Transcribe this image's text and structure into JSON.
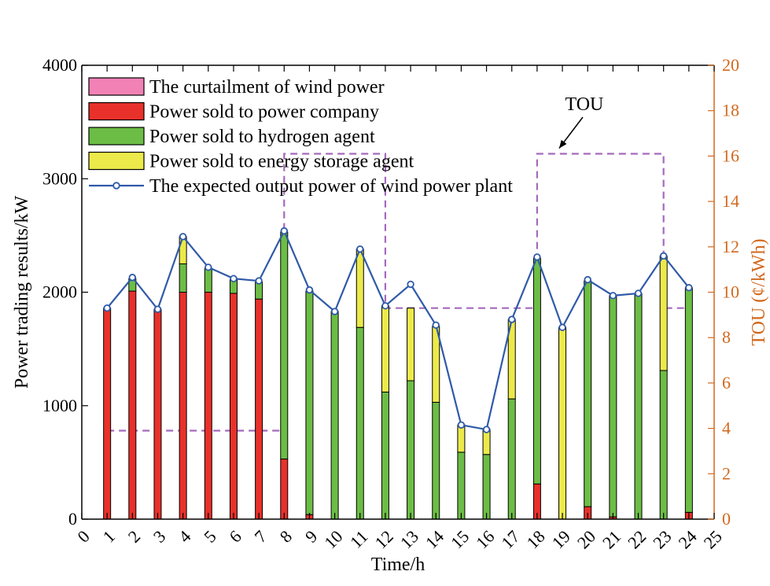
{
  "chart_data": {
    "type": "bar",
    "subtype": "stacked-bar-with-line-and-secondary-axis",
    "xlabel": "Time/h",
    "ylabel": "Power trading results/kW",
    "y2label": "TOU (¢/kWh)",
    "xlim": [
      0,
      25
    ],
    "ylim": [
      0,
      4000
    ],
    "y2lim": [
      0,
      20
    ],
    "x_ticks": [
      "0",
      "1",
      "2",
      "3",
      "4",
      "5",
      "6",
      "7",
      "8",
      "9",
      "10",
      "11",
      "12",
      "13",
      "14",
      "15",
      "16",
      "17",
      "18",
      "19",
      "20",
      "21",
      "22",
      "23",
      "24",
      "25"
    ],
    "y_ticks": [
      "0",
      "1000",
      "2000",
      "3000",
      "4000"
    ],
    "y2_ticks": [
      "0",
      "2",
      "4",
      "6",
      "8",
      "10",
      "12",
      "14",
      "16",
      "18",
      "20"
    ],
    "hours": [
      1,
      2,
      3,
      4,
      5,
      6,
      7,
      8,
      9,
      10,
      11,
      12,
      13,
      14,
      15,
      16,
      17,
      18,
      19,
      20,
      21,
      22,
      23,
      24
    ],
    "series": [
      {
        "name": "Power sold to power company",
        "color": "#e8312a",
        "values": [
          1860,
          2010,
          1850,
          2000,
          2000,
          1990,
          1940,
          530,
          40,
          0,
          0,
          0,
          0,
          0,
          0,
          0,
          0,
          310,
          0,
          110,
          20,
          0,
          0,
          60
        ]
      },
      {
        "name": "Power sold to hydrogen agent",
        "color": "#6cbd45",
        "values": [
          0,
          110,
          0,
          250,
          210,
          120,
          150,
          2000,
          1970,
          1830,
          1690,
          1120,
          1220,
          1030,
          590,
          570,
          1060,
          1990,
          0,
          1990,
          1950,
          1990,
          1310,
          1980
        ]
      },
      {
        "name": "Power sold to energy storage agent",
        "color": "#ecea4a",
        "values": [
          0,
          0,
          0,
          240,
          0,
          0,
          0,
          0,
          0,
          0,
          690,
          760,
          640,
          670,
          240,
          220,
          700,
          0,
          1690,
          0,
          0,
          0,
          1010,
          0
        ]
      },
      {
        "name": "The curtailment of wind power",
        "color": "#f282b6",
        "values": [
          0,
          0,
          0,
          0,
          0,
          0,
          0,
          0,
          0,
          0,
          0,
          0,
          0,
          0,
          0,
          0,
          0,
          0,
          0,
          0,
          0,
          0,
          0,
          0
        ]
      }
    ],
    "line": {
      "name": "The expected output power of wind power plant",
      "color": "#2f5aa8",
      "values": [
        1860,
        2130,
        1850,
        2490,
        2220,
        2120,
        2100,
        2540,
        2020,
        1830,
        2380,
        1880,
        2070,
        1710,
        830,
        790,
        1760,
        2310,
        1690,
        2110,
        1970,
        1990,
        2320,
        2040
      ]
    },
    "tou": {
      "name": "TOU",
      "color": "#a569bd",
      "steps": [
        {
          "from": 1,
          "to": 8,
          "value": 3.9
        },
        {
          "from": 8,
          "to": 12,
          "value": 16.1
        },
        {
          "from": 12,
          "to": 18,
          "value": 9.3
        },
        {
          "from": 18,
          "to": 23,
          "value": 16.1
        },
        {
          "from": 23,
          "to": 24,
          "value": 9.3
        }
      ]
    },
    "legend": [
      {
        "label": "The curtailment of wind power",
        "kind": "box",
        "color": "#f282b6"
      },
      {
        "label": "Power sold to power company",
        "kind": "box",
        "color": "#e8312a"
      },
      {
        "label": "Power sold to hydrogen agent",
        "kind": "box",
        "color": "#6cbd45"
      },
      {
        "label": "Power sold to energy storage agent",
        "kind": "box",
        "color": "#ecea4a"
      },
      {
        "label": "The expected output power of wind power plant",
        "kind": "line",
        "color": "#2f5aa8"
      }
    ],
    "legend_position": "top-left",
    "annotation": {
      "text": "TOU",
      "points_to_hour": 18.5,
      "points_to_value": 16.1
    },
    "right_axis_color": "#d2691e"
  }
}
